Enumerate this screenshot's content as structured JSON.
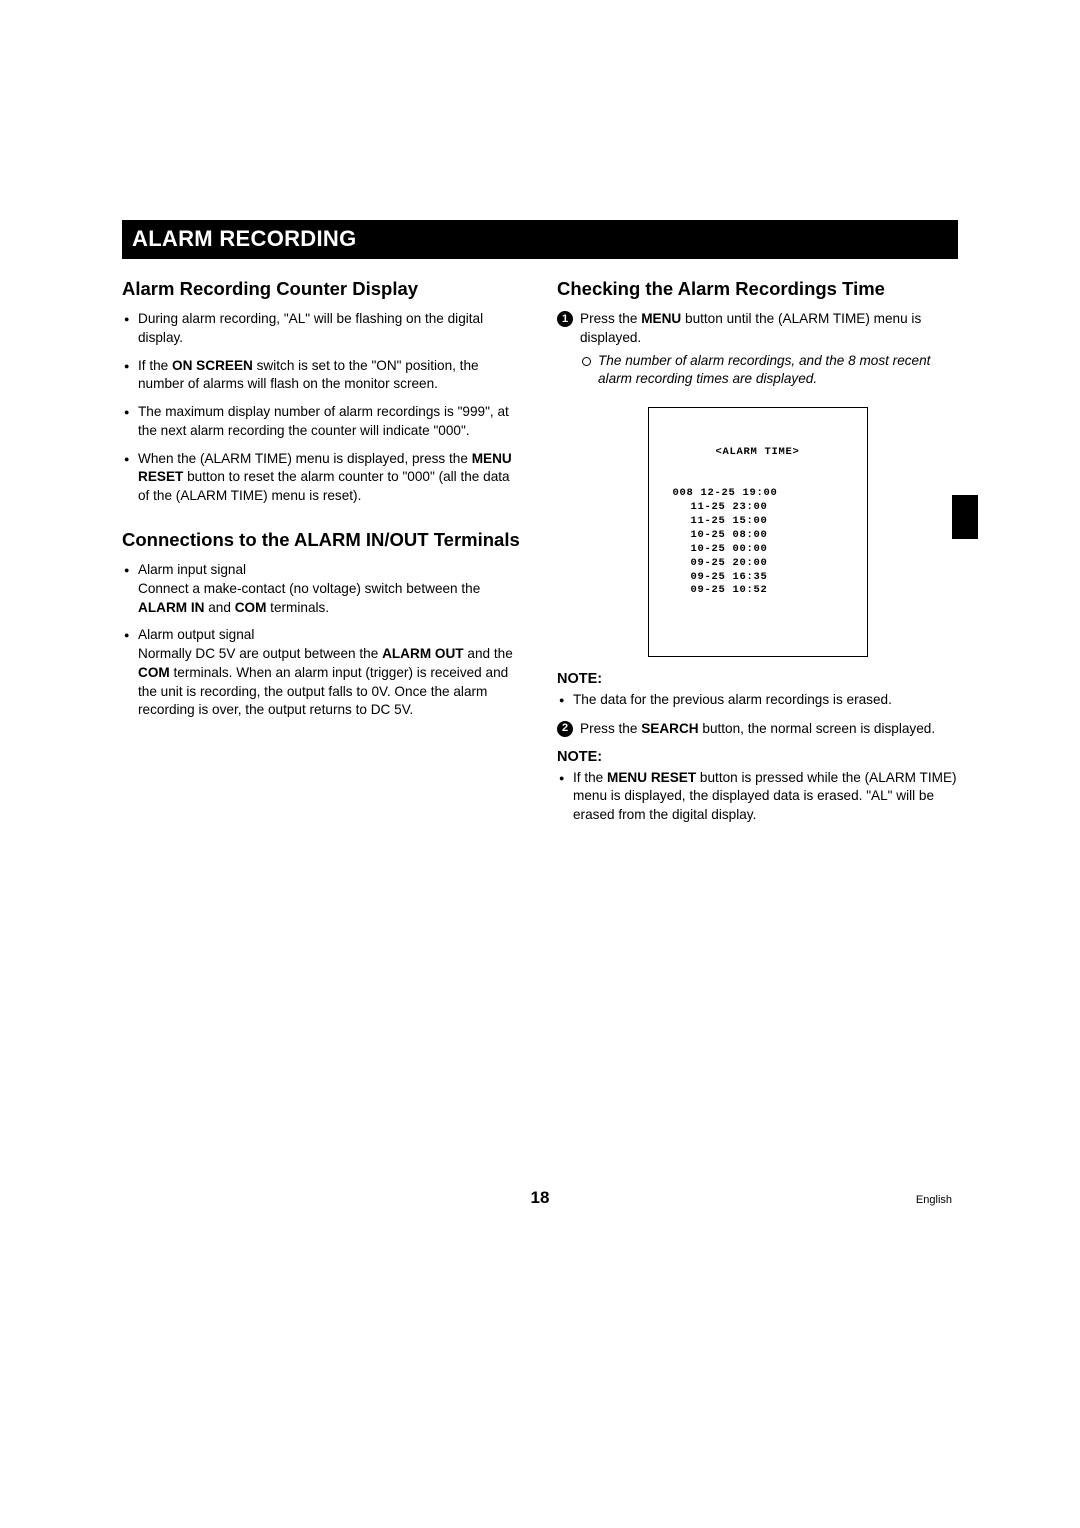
{
  "title_bar": "ALARM RECORDING",
  "left": {
    "section1": {
      "heading": "Alarm Recording Counter Display",
      "bullets": [
        {
          "parts": [
            {
              "t": "During alarm recording, \"AL\" will be flashing on the digital display."
            }
          ]
        },
        {
          "parts": [
            {
              "t": "If the "
            },
            {
              "t": "ON SCREEN",
              "b": true
            },
            {
              "t": " switch is set to the \"ON\" position, the number of alarms will flash on the monitor screen."
            }
          ]
        },
        {
          "parts": [
            {
              "t": "The maximum display number of alarm recordings is \"999\", at the next alarm recording the counter will indicate \"000\"."
            }
          ]
        },
        {
          "parts": [
            {
              "t": "When the (ALARM TIME) menu is displayed, press the "
            },
            {
              "t": "MENU RESET",
              "b": true
            },
            {
              "t": " button to reset the alarm counter to \"000\" (all the data of the (ALARM TIME) menu is reset)."
            }
          ]
        }
      ]
    },
    "section2": {
      "heading": "Connections to the ALARM IN/OUT Terminals",
      "bullets": [
        {
          "parts": [
            {
              "t": "Alarm input signal"
            },
            {
              "br": true
            },
            {
              "t": "Connect a make-contact (no voltage) switch between the "
            },
            {
              "t": "ALARM IN",
              "b": true
            },
            {
              "t": " and "
            },
            {
              "t": "COM",
              "b": true
            },
            {
              "t": " terminals."
            }
          ]
        },
        {
          "parts": [
            {
              "t": "Alarm output signal"
            },
            {
              "br": true
            },
            {
              "t": "Normally DC 5V are output between the "
            },
            {
              "t": "ALARM OUT",
              "b": true
            },
            {
              "t": " and the "
            },
            {
              "t": "COM",
              "b": true
            },
            {
              "t": " terminals. When an alarm input (trigger) is received and the unit is recording, the output falls to 0V. Once the alarm recording is over, the output returns to DC 5V."
            }
          ]
        }
      ]
    }
  },
  "right": {
    "section1": {
      "heading": "Checking the Alarm Recordings Time",
      "step1": {
        "num": "1",
        "parts": [
          {
            "t": "Press the "
          },
          {
            "t": "MENU",
            "b": true
          },
          {
            "t": " button until the (ALARM TIME) menu is displayed."
          }
        ],
        "sub_hollow": "The number of alarm recordings, and the 8 most recent alarm recording times are displayed."
      },
      "screen": {
        "title": "<ALARM TIME>",
        "rows": [
          "008 12-25 19:00",
          "11-25 23:00",
          "11-25 15:00",
          "10-25 08:00",
          "10-25 00:00",
          "09-25 20:00",
          "09-25 16:35",
          "09-25 10:52"
        ]
      },
      "note1_heading": "NOTE:",
      "note1_bullet": {
        "parts": [
          {
            "t": "The data for the previous alarm recordings is erased."
          }
        ]
      },
      "step2": {
        "num": "2",
        "parts": [
          {
            "t": "Press the "
          },
          {
            "t": "SEARCH",
            "b": true
          },
          {
            "t": " button, the normal screen is displayed."
          }
        ]
      },
      "note2_heading": "NOTE:",
      "note2_bullet": {
        "parts": [
          {
            "t": "If the "
          },
          {
            "t": "MENU RESET",
            "b": true
          },
          {
            "t": " button is pressed while the (ALARM TIME) menu is displayed, the displayed data is erased. \"AL\" will be erased from the digital display."
          }
        ]
      }
    }
  },
  "footer": {
    "page_number": "18",
    "language": "English"
  }
}
